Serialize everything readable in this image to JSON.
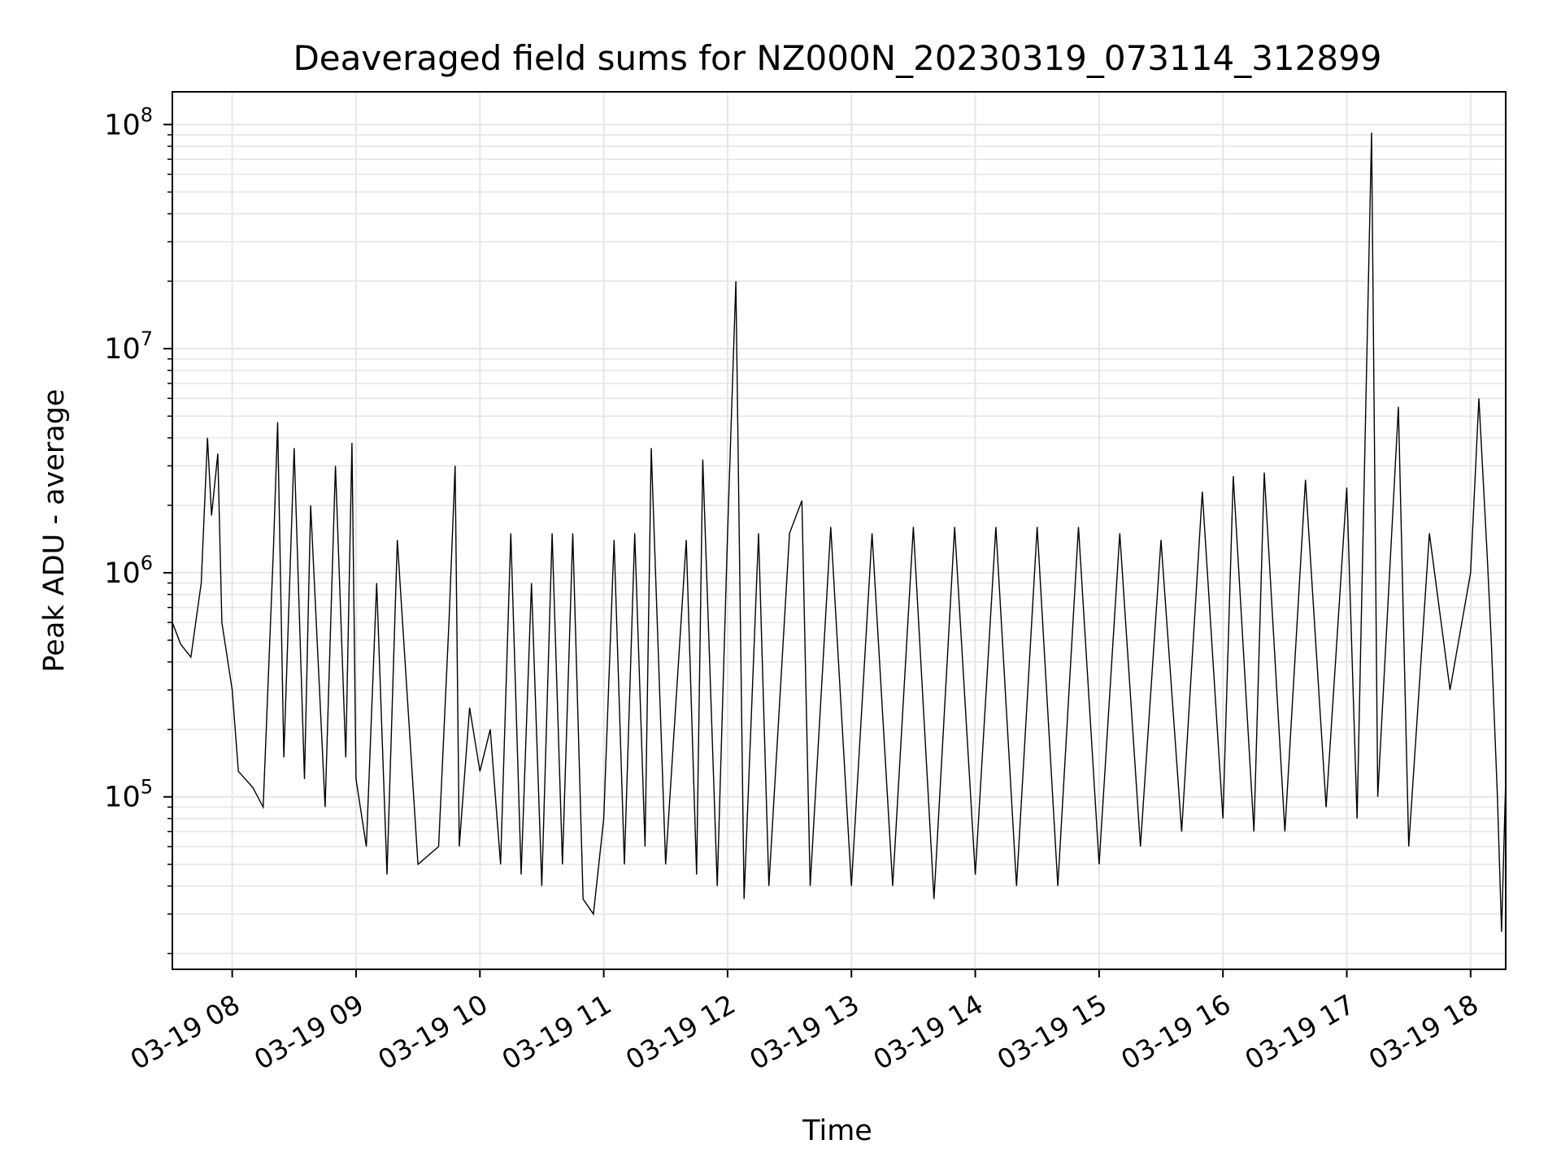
{
  "chart_data": {
    "type": "line",
    "title": "Deaveraged field sums for NZ000N_20230319_073114_312899",
    "xlabel": "Time",
    "ylabel": "Peak ADU - average",
    "yscale": "log",
    "xlim": [
      "03-19 07:31",
      "03-19 18:17"
    ],
    "ylim": [
      17000,
      140000000
    ],
    "grid": true,
    "line_color": "#000000",
    "grid_color": "#e6e6e6",
    "x_ticks": [
      {
        "value": "03-19 08:00",
        "label": "03-19 08"
      },
      {
        "value": "03-19 09:00",
        "label": "03-19 09"
      },
      {
        "value": "03-19 10:00",
        "label": "03-19 10"
      },
      {
        "value": "03-19 11:00",
        "label": "03-19 11"
      },
      {
        "value": "03-19 12:00",
        "label": "03-19 12"
      },
      {
        "value": "03-19 13:00",
        "label": "03-19 13"
      },
      {
        "value": "03-19 14:00",
        "label": "03-19 14"
      },
      {
        "value": "03-19 15:00",
        "label": "03-19 15"
      },
      {
        "value": "03-19 16:00",
        "label": "03-19 16"
      },
      {
        "value": "03-19 17:00",
        "label": "03-19 17"
      },
      {
        "value": "03-19 18:00",
        "label": "03-19 18"
      }
    ],
    "y_ticks": [
      {
        "value": 100000,
        "base": "10",
        "exp": "5"
      },
      {
        "value": 1000000,
        "base": "10",
        "exp": "6"
      },
      {
        "value": 10000000,
        "base": "10",
        "exp": "7"
      },
      {
        "value": 100000000,
        "base": "10",
        "exp": "8"
      }
    ],
    "series": [
      {
        "points": [
          [
            "03-19 07:31",
            600000
          ],
          [
            "03-19 07:35",
            480000
          ],
          [
            "03-19 07:40",
            420000
          ],
          [
            "03-19 07:45",
            900000
          ],
          [
            "03-19 07:48",
            4000000
          ],
          [
            "03-19 07:50",
            1800000
          ],
          [
            "03-19 07:53",
            3400000
          ],
          [
            "03-19 07:55",
            600000
          ],
          [
            "03-19 08:00",
            300000
          ],
          [
            "03-19 08:03",
            130000
          ],
          [
            "03-19 08:10",
            110000
          ],
          [
            "03-19 08:15",
            90000
          ],
          [
            "03-19 08:20",
            1300000
          ],
          [
            "03-19 08:22",
            4700000
          ],
          [
            "03-19 08:25",
            150000
          ],
          [
            "03-19 08:30",
            3600000
          ],
          [
            "03-19 08:35",
            120000
          ],
          [
            "03-19 08:38",
            2000000
          ],
          [
            "03-19 08:45",
            90000
          ],
          [
            "03-19 08:50",
            3000000
          ],
          [
            "03-19 08:55",
            150000
          ],
          [
            "03-19 08:58",
            3800000
          ],
          [
            "03-19 09:00",
            120000
          ],
          [
            "03-19 09:05",
            60000
          ],
          [
            "03-19 09:10",
            900000
          ],
          [
            "03-19 09:15",
            45000
          ],
          [
            "03-19 09:20",
            1400000
          ],
          [
            "03-19 09:30",
            50000
          ],
          [
            "03-19 09:40",
            60000
          ],
          [
            "03-19 09:45",
            600000
          ],
          [
            "03-19 09:48",
            3000000
          ],
          [
            "03-19 09:50",
            60000
          ],
          [
            "03-19 09:55",
            250000
          ],
          [
            "03-19 10:00",
            130000
          ],
          [
            "03-19 10:05",
            200000
          ],
          [
            "03-19 10:10",
            50000
          ],
          [
            "03-19 10:15",
            1500000
          ],
          [
            "03-19 10:20",
            45000
          ],
          [
            "03-19 10:25",
            900000
          ],
          [
            "03-19 10:30",
            40000
          ],
          [
            "03-19 10:35",
            1500000
          ],
          [
            "03-19 10:40",
            50000
          ],
          [
            "03-19 10:45",
            1500000
          ],
          [
            "03-19 10:50",
            35000
          ],
          [
            "03-19 10:55",
            30000
          ],
          [
            "03-19 11:00",
            80000
          ],
          [
            "03-19 11:05",
            1400000
          ],
          [
            "03-19 11:10",
            50000
          ],
          [
            "03-19 11:15",
            1500000
          ],
          [
            "03-19 11:20",
            60000
          ],
          [
            "03-19 11:23",
            3600000
          ],
          [
            "03-19 11:30",
            50000
          ],
          [
            "03-19 11:40",
            1400000
          ],
          [
            "03-19 11:45",
            45000
          ],
          [
            "03-19 11:48",
            3200000
          ],
          [
            "03-19 11:55",
            40000
          ],
          [
            "03-19 12:00",
            1500000
          ],
          [
            "03-19 12:04",
            20000000
          ],
          [
            "03-19 12:08",
            35000
          ],
          [
            "03-19 12:15",
            1500000
          ],
          [
            "03-19 12:20",
            40000
          ],
          [
            "03-19 12:30",
            1500000
          ],
          [
            "03-19 12:36",
            2100000
          ],
          [
            "03-19 12:40",
            40000
          ],
          [
            "03-19 12:50",
            1600000
          ],
          [
            "03-19 13:00",
            40000
          ],
          [
            "03-19 13:10",
            1500000
          ],
          [
            "03-19 13:20",
            40000
          ],
          [
            "03-19 13:30",
            1600000
          ],
          [
            "03-19 13:40",
            35000
          ],
          [
            "03-19 13:50",
            1600000
          ],
          [
            "03-19 14:00",
            45000
          ],
          [
            "03-19 14:10",
            1600000
          ],
          [
            "03-19 14:20",
            40000
          ],
          [
            "03-19 14:30",
            1600000
          ],
          [
            "03-19 14:40",
            40000
          ],
          [
            "03-19 14:50",
            1600000
          ],
          [
            "03-19 15:00",
            50000
          ],
          [
            "03-19 15:10",
            1500000
          ],
          [
            "03-19 15:20",
            60000
          ],
          [
            "03-19 15:30",
            1400000
          ],
          [
            "03-19 15:40",
            70000
          ],
          [
            "03-19 15:50",
            2300000
          ],
          [
            "03-19 16:00",
            80000
          ],
          [
            "03-19 16:05",
            2700000
          ],
          [
            "03-19 16:15",
            70000
          ],
          [
            "03-19 16:20",
            2800000
          ],
          [
            "03-19 16:30",
            70000
          ],
          [
            "03-19 16:40",
            2600000
          ],
          [
            "03-19 16:50",
            90000
          ],
          [
            "03-19 17:00",
            2400000
          ],
          [
            "03-19 17:05",
            80000
          ],
          [
            "03-19 17:12",
            92000000
          ],
          [
            "03-19 17:15",
            100000
          ],
          [
            "03-19 17:25",
            5500000
          ],
          [
            "03-19 17:30",
            60000
          ],
          [
            "03-19 17:40",
            1500000
          ],
          [
            "03-19 17:50",
            300000
          ],
          [
            "03-19 18:00",
            1000000
          ],
          [
            "03-19 18:04",
            6000000
          ],
          [
            "03-19 18:08",
            1200000
          ],
          [
            "03-19 18:10",
            500000
          ],
          [
            "03-19 18:13",
            100000
          ],
          [
            "03-19 18:15",
            25000
          ],
          [
            "03-19 18:17",
            120000
          ]
        ]
      }
    ]
  }
}
